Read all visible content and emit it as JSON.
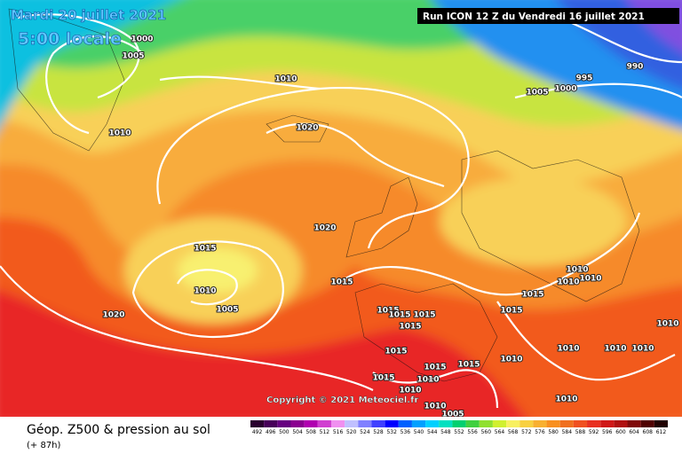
{
  "header": {
    "date": "Mardi 20 juillet 2021",
    "time": "5:00 locale",
    "run": "Run ICON 12 Z du Vendredi 16 juillet 2021"
  },
  "copyright": "Copyright © 2021 Meteociel.fr",
  "footer": {
    "title": "Géop. Z500 & pression au sol",
    "lead": "(+ 87h)"
  },
  "legend": {
    "values": [
      492,
      496,
      500,
      504,
      508,
      512,
      516,
      520,
      524,
      528,
      532,
      536,
      540,
      544,
      548,
      552,
      556,
      560,
      564,
      568,
      572,
      576,
      580,
      584,
      588,
      592,
      596,
      600,
      604,
      608,
      612
    ],
    "colors": [
      "#2a0030",
      "#48005a",
      "#660080",
      "#8a0090",
      "#b000b0",
      "#d040d0",
      "#f090f0",
      "#c0c0ff",
      "#8080ff",
      "#4040ff",
      "#0000ff",
      "#0060ff",
      "#00a0ff",
      "#00d0ff",
      "#00e0c0",
      "#00d070",
      "#40d040",
      "#90e030",
      "#d0f030",
      "#f8f060",
      "#f8d040",
      "#f8b030",
      "#f89020",
      "#f07020",
      "#f05020",
      "#e83020",
      "#d01818",
      "#b01010",
      "#800808",
      "#500000",
      "#200000"
    ]
  },
  "isobar_labels": [
    "1000",
    "1005",
    "1010",
    "1010",
    "1020",
    "1020",
    "1015",
    "1010",
    "1005",
    "1020",
    "1015",
    "995",
    "990",
    "1005",
    "1000",
    "1010",
    "1010",
    "1010",
    "1015",
    "1015",
    "1015",
    "1015",
    "1015",
    "1015",
    "1015",
    "1015",
    "1015",
    "1010",
    "1010",
    "1010",
    "1010",
    "1010",
    "1010",
    "1015",
    "1010",
    "1005",
    "1010",
    "1010"
  ]
}
